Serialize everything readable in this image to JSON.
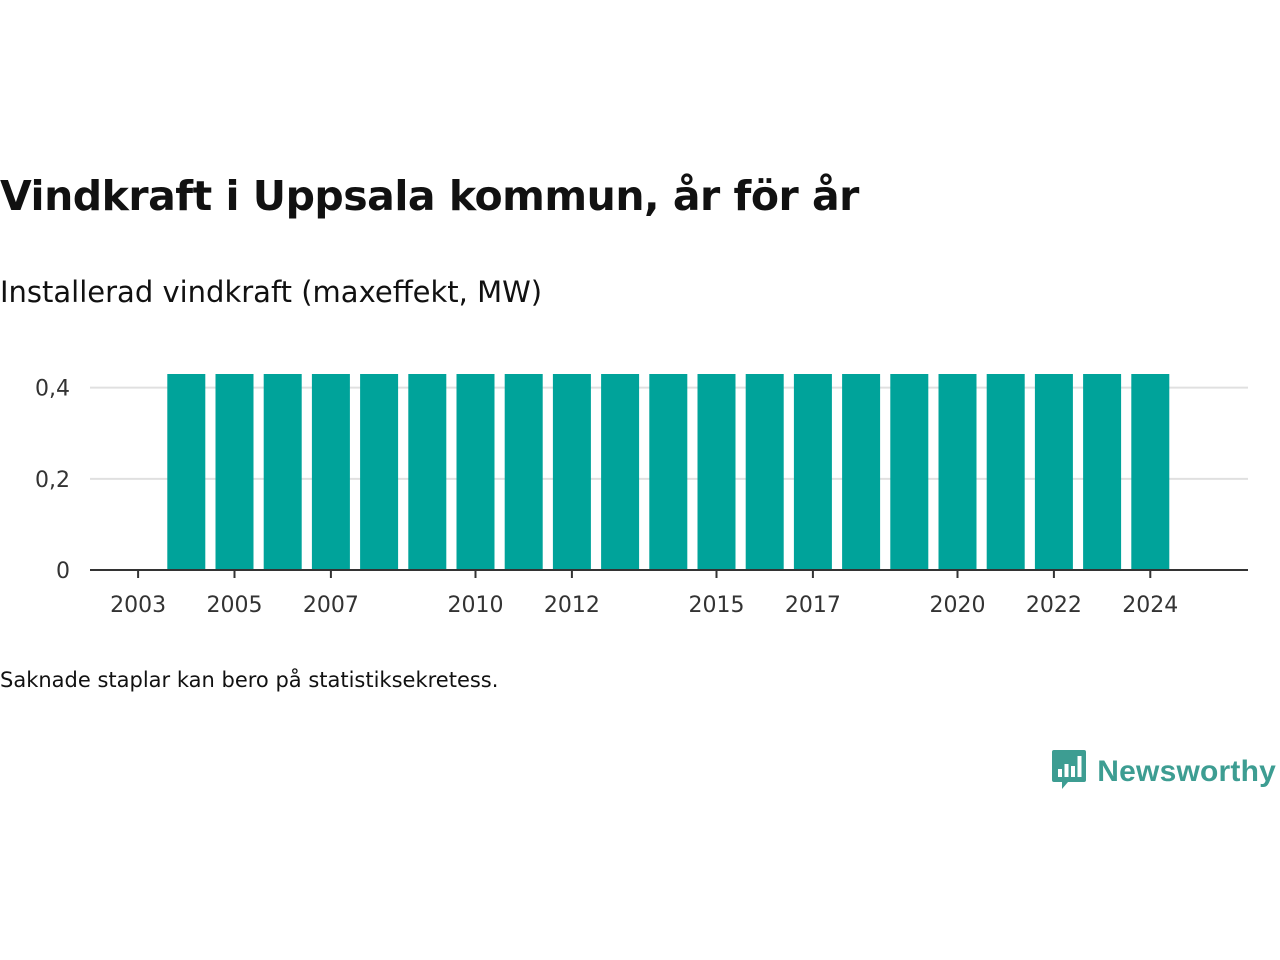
{
  "chart_data": {
    "type": "bar",
    "title": "Vindkraft i Uppsala kommun, år för år",
    "subtitle": "Installerad vindkraft (maxeffekt, MW)",
    "categories": [
      "2003",
      "2004",
      "2005",
      "2006",
      "2007",
      "2008",
      "2009",
      "2010",
      "2011",
      "2012",
      "2013",
      "2014",
      "2015",
      "2016",
      "2017",
      "2018",
      "2019",
      "2020",
      "2021",
      "2022",
      "2023",
      "2024"
    ],
    "values": [
      null,
      0.43,
      0.43,
      0.43,
      0.43,
      0.43,
      0.43,
      0.43,
      0.43,
      0.43,
      0.43,
      0.43,
      0.43,
      0.43,
      0.43,
      0.43,
      0.43,
      0.43,
      0.43,
      0.43,
      0.43,
      0.43
    ],
    "x_tick_labels": [
      "2003",
      "2005",
      "2007",
      "2010",
      "2012",
      "2015",
      "2017",
      "2020",
      "2022",
      "2024"
    ],
    "y_ticks": [
      0,
      0.2,
      0.4
    ],
    "y_tick_labels": [
      "0",
      "0,2",
      "0,4"
    ],
    "ylim": [
      0,
      0.43
    ],
    "xlabel": "",
    "ylabel": "",
    "grid": true,
    "bar_color": "#00a39a",
    "grid_color": "#e0e0e0",
    "axis_color": "#333333"
  },
  "footnote": "Saknade staplar kan bero på statistiksekretess.",
  "brand": {
    "name": "Newsworthy",
    "icon": "newsworthy-logo-icon",
    "color": "#3d9d92"
  }
}
